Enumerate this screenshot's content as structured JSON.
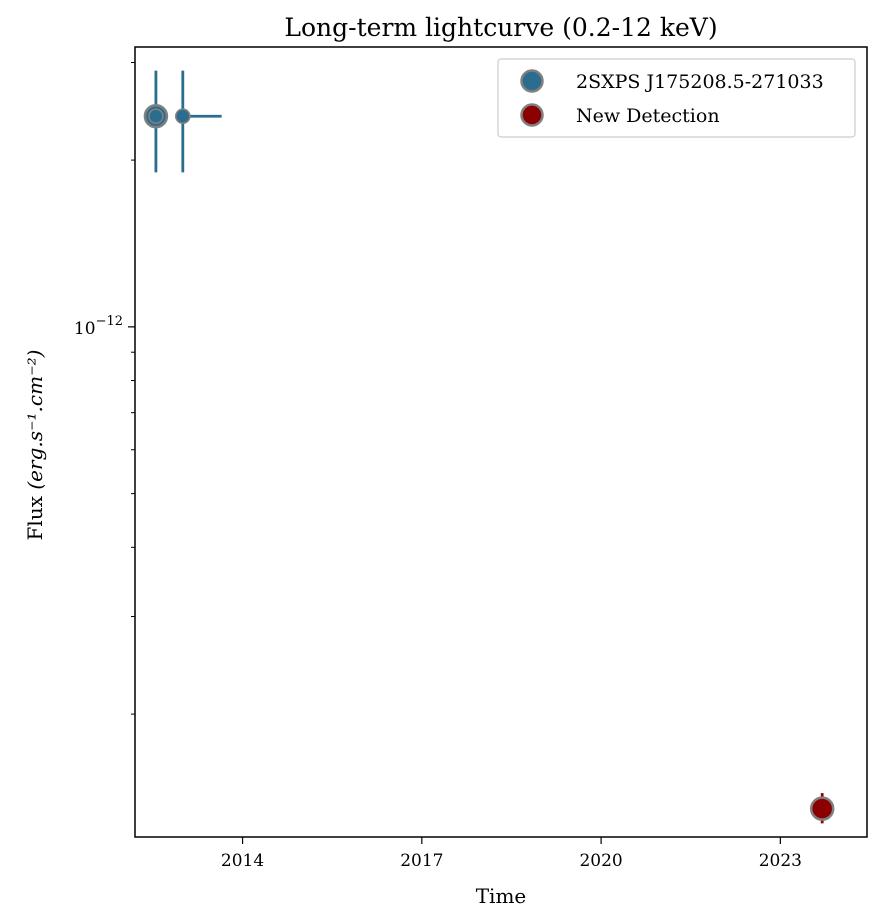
{
  "chart_data": {
    "type": "scatter",
    "title": "Long-term lightcurve (0.2-12 keV)",
    "xlabel": "Time",
    "ylabel_prefix": "Flux ",
    "ylabel_units": "(erg.s⁻¹.cm⁻²)",
    "y_scale": "log",
    "grid": false,
    "legend_position": "top-right",
    "x_axis_unit": "decimal year",
    "xlim": [
      2012.2,
      2024.45
    ],
    "ylim": [
      1.2e-13,
      3.2e-12
    ],
    "x_ticks": [
      {
        "value": 2014,
        "label": "2014"
      },
      {
        "value": 2017,
        "label": "2017"
      },
      {
        "value": 2020,
        "label": "2020"
      },
      {
        "value": 2023,
        "label": "2023"
      }
    ],
    "y_major_ticks": [
      {
        "value": 1e-12,
        "base": "10",
        "exponent": "−12"
      }
    ],
    "y_minor_ticks": [
      2e-13,
      3e-13,
      4e-13,
      5e-13,
      6e-13,
      7e-13,
      8e-13,
      9e-13,
      2e-12,
      3e-12
    ],
    "series": [
      {
        "name": "2SXPS J175208.5-271033",
        "color": "#2a6d8f",
        "edge_color": "#808080",
        "points": [
          {
            "x": 2012.55,
            "y": 2.4e-12,
            "xerr": [
              0.2,
              0.0
            ],
            "ylo": 1.9e-12,
            "yhi": 2.9e-12,
            "size": "large"
          },
          {
            "x": 2012.55,
            "y": 2.4e-12,
            "xerr": [
              0.0,
              0.0
            ],
            "ylo": 2.4e-12,
            "yhi": 2.4e-12,
            "size": "small"
          },
          {
            "x": 2013.0,
            "y": 2.4e-12,
            "xerr": [
              0.0,
              0.65
            ],
            "ylo": 1.9e-12,
            "yhi": 2.9e-12,
            "size": "small"
          }
        ]
      },
      {
        "name": "New Detection",
        "color": "#8b0000",
        "edge_color": "#808080",
        "points": [
          {
            "x": 2023.7,
            "y": 1.35e-13,
            "xerr": [
              0.0,
              0.0
            ],
            "ylo": 1.27e-13,
            "yhi": 1.44e-13,
            "size": "large"
          }
        ]
      }
    ]
  }
}
